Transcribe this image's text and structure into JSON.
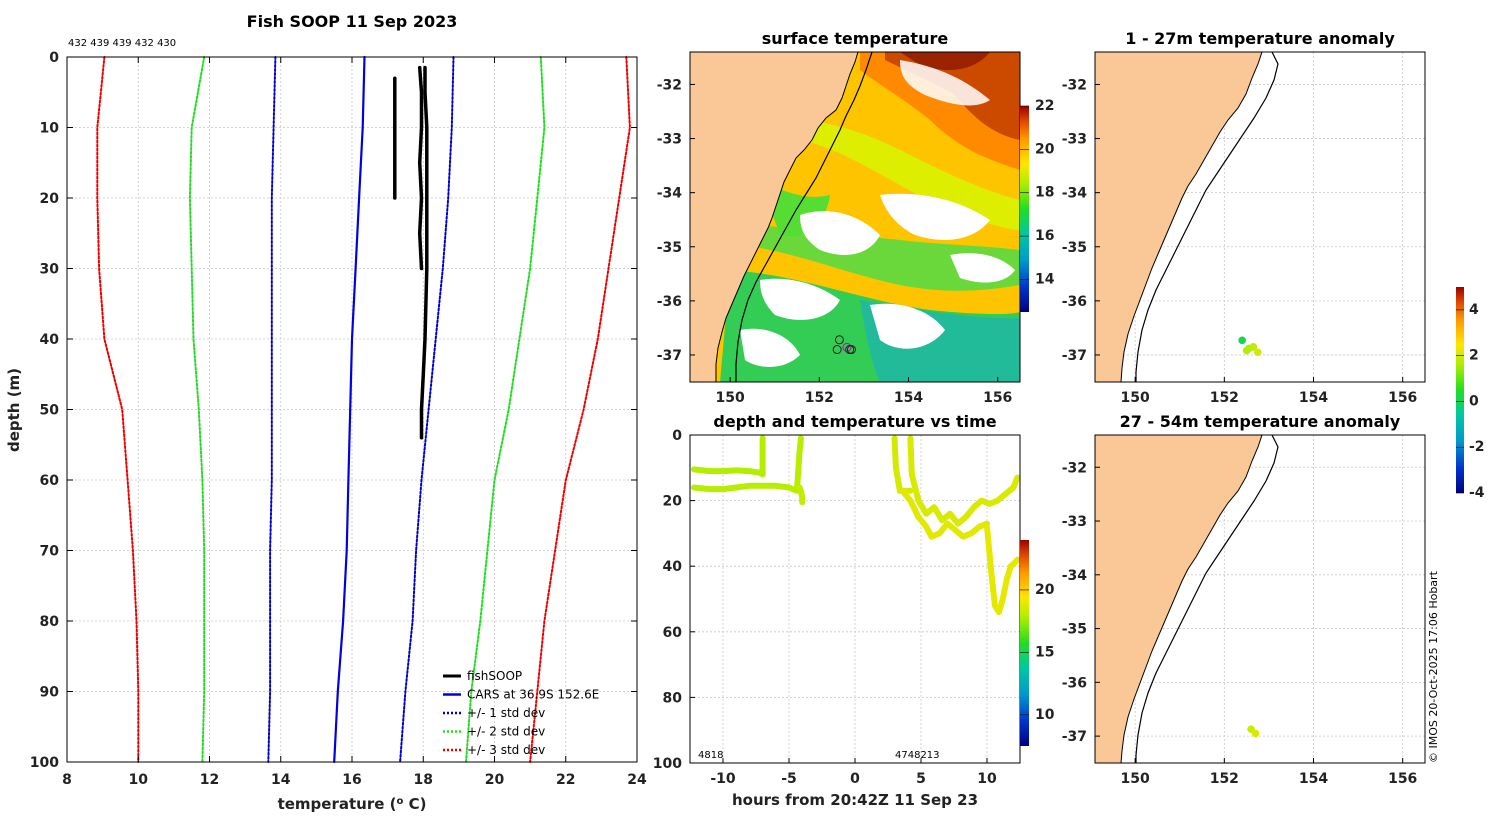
{
  "title": "Fish SOOP 11 Sep 2023",
  "top_counts": "432 439 439 432 430",
  "footer": "© IMOS 20-Oct-2025 17:06 Hobart",
  "colors": {
    "land": "#f9c896",
    "cars": "#0000e0",
    "std1": "#0000cc",
    "std2": "#22dd22",
    "std3": "#ee0000",
    "soop": "#000000"
  },
  "legend": [
    {
      "label": "fishSOOP",
      "style": "soop"
    },
    {
      "label": "CARS at 36.9S 152.6E",
      "style": "cars"
    },
    {
      "label": "+/- 1 std dev",
      "style": "std1"
    },
    {
      "label": "+/- 2 std dev",
      "style": "std2"
    },
    {
      "label": "+/- 3 std dev",
      "style": "std3"
    }
  ],
  "chart_data": [
    {
      "id": "profile",
      "type": "line",
      "xlabel": "temperature (° C)",
      "ylabel": "depth (m)",
      "xlim": [
        8,
        24
      ],
      "ylim": [
        0,
        100
      ],
      "xticks": [
        "8",
        "10",
        "12",
        "14",
        "16",
        "18",
        "20",
        "22",
        "24"
      ],
      "yticks": [
        "0",
        "10",
        "20",
        "30",
        "40",
        "50",
        "60",
        "70",
        "80",
        "90",
        "100"
      ],
      "series": [
        {
          "name": "CARS at 36.9S 152.6E",
          "style": "cars",
          "depth": [
            0,
            10,
            20,
            30,
            40,
            50,
            60,
            70,
            80,
            90,
            100
          ],
          "temp": [
            16.35,
            16.3,
            16.2,
            16.1,
            16.0,
            15.95,
            15.9,
            15.85,
            15.75,
            15.6,
            15.5
          ]
        },
        {
          "name": "+1 std dev",
          "style": "std1",
          "depth": [
            0,
            10,
            20,
            30,
            40,
            50,
            60,
            70,
            80,
            90,
            100
          ],
          "temp": [
            18.85,
            18.8,
            18.7,
            18.55,
            18.35,
            18.15,
            17.95,
            17.8,
            17.7,
            17.5,
            17.35
          ]
        },
        {
          "name": "-1 std dev",
          "style": "std1",
          "depth": [
            0,
            10,
            20,
            30,
            40,
            50,
            60,
            70,
            80,
            90,
            100
          ],
          "temp": [
            13.85,
            13.8,
            13.75,
            13.75,
            13.75,
            13.75,
            13.75,
            13.7,
            13.7,
            13.7,
            13.65
          ]
        },
        {
          "name": "+2 std dev",
          "style": "std2",
          "depth": [
            0,
            10,
            20,
            30,
            40,
            50,
            60,
            70,
            80,
            90,
            100
          ],
          "temp": [
            21.3,
            21.4,
            21.2,
            21.0,
            20.7,
            20.4,
            20.0,
            19.8,
            19.6,
            19.35,
            19.2
          ]
        },
        {
          "name": "-2 std dev",
          "style": "std2",
          "depth": [
            0,
            10,
            20,
            30,
            40,
            50,
            60,
            70,
            80,
            90,
            100
          ],
          "temp": [
            11.85,
            11.5,
            11.45,
            11.5,
            11.55,
            11.7,
            11.8,
            11.85,
            11.85,
            11.85,
            11.8
          ]
        },
        {
          "name": "+3 std dev",
          "style": "std3",
          "depth": [
            0,
            10,
            20,
            30,
            40,
            50,
            60,
            70,
            80,
            90,
            100
          ],
          "temp": [
            23.7,
            23.8,
            23.5,
            23.2,
            22.9,
            22.5,
            22.0,
            21.7,
            21.4,
            21.2,
            21.0
          ]
        },
        {
          "name": "-3 std dev",
          "style": "std3",
          "depth": [
            0,
            10,
            20,
            30,
            40,
            50,
            60,
            70,
            80,
            90,
            100
          ],
          "temp": [
            9.05,
            8.85,
            8.85,
            8.9,
            9.05,
            9.55,
            9.7,
            9.85,
            9.95,
            10.0,
            10.0
          ]
        },
        {
          "name": "fishSOOP a",
          "style": "soop",
          "depth": [
            1.5,
            5,
            10,
            15,
            20,
            25,
            30
          ],
          "temp": [
            17.9,
            17.95,
            17.95,
            17.9,
            17.95,
            17.9,
            17.95
          ]
        },
        {
          "name": "fishSOOP b",
          "style": "soop",
          "depth": [
            1.5,
            5,
            10,
            20,
            30,
            40,
            45,
            50,
            54
          ],
          "temp": [
            18.05,
            18.05,
            18.1,
            18.1,
            18.1,
            18.05,
            18.0,
            17.95,
            17.95
          ]
        },
        {
          "name": "fishSOOP c",
          "style": "soop",
          "depth": [
            3,
            10,
            20
          ],
          "temp": [
            17.2,
            17.2,
            17.2
          ]
        }
      ]
    },
    {
      "id": "sst",
      "type": "heatmap",
      "title": "surface temperature",
      "xlim": [
        149.1,
        156.5
      ],
      "ylim": [
        -37.5,
        -31.4
      ],
      "xticks": [
        "150",
        "152",
        "154",
        "156"
      ],
      "yticks": [
        "-32",
        "-33",
        "-34",
        "-35",
        "-36",
        "-37"
      ],
      "colorbar": {
        "ticks": [
          "14",
          "16",
          "18",
          "20",
          "22"
        ],
        "range": [
          12.5,
          22
        ]
      },
      "stations": [
        [
          152.45,
          -36.72
        ],
        [
          152.4,
          -36.9
        ],
        [
          152.62,
          -36.86
        ],
        [
          152.72,
          -36.9
        ],
        [
          152.68,
          -36.9
        ]
      ]
    },
    {
      "id": "anom_shallow",
      "type": "scatter",
      "title": "1 - 27m temperature anomaly",
      "xlim": [
        149.1,
        156.5
      ],
      "ylim": [
        -37.5,
        -31.4
      ],
      "xticks": [
        "150",
        "152",
        "154",
        "156"
      ],
      "yticks": [
        "-32",
        "-33",
        "-34",
        "-35",
        "-36",
        "-37"
      ],
      "points": [
        {
          "lon": 152.4,
          "lat": -36.73,
          "anom": 0.1
        },
        {
          "lon": 152.55,
          "lat": -36.88,
          "anom": 1.6
        },
        {
          "lon": 152.65,
          "lat": -36.85,
          "anom": 1.8
        },
        {
          "lon": 152.75,
          "lat": -36.95,
          "anom": 2.0
        },
        {
          "lon": 152.5,
          "lat": -36.92,
          "anom": 1.7
        }
      ]
    },
    {
      "id": "anom_deep",
      "type": "scatter",
      "title": "27 - 54m temperature anomaly",
      "xlim": [
        149.1,
        156.5
      ],
      "ylim": [
        -37.5,
        -31.4
      ],
      "xticks": [
        "150",
        "152",
        "154",
        "156"
      ],
      "yticks": [
        "-32",
        "-33",
        "-34",
        "-35",
        "-36",
        "-37"
      ],
      "points": [
        {
          "lon": 152.6,
          "lat": -36.87,
          "anom": 1.9
        },
        {
          "lon": 152.7,
          "lat": -36.95,
          "anom": 2.1
        }
      ]
    },
    {
      "id": "anom_colorbar",
      "type": "colorbar",
      "ticks": [
        "4",
        "2",
        "0",
        "-2",
        "-4"
      ],
      "range": [
        -4,
        5
      ]
    },
    {
      "id": "time",
      "type": "scatter",
      "title": "depth and temperature vs time",
      "xlabel": "hours from 20:42Z 11 Sep 23",
      "xlim": [
        -12.5,
        12.5
      ],
      "ylim": [
        0,
        100
      ],
      "xticks": [
        "-10",
        "-5",
        "0",
        "5",
        "10"
      ],
      "yticks": [
        "0",
        "20",
        "40",
        "60",
        "80",
        "100"
      ],
      "colorbar": {
        "ticks": [
          "10",
          "15",
          "20"
        ],
        "range": [
          7.5,
          24
        ]
      },
      "count_left": "4818",
      "count_right": "4748213",
      "tracks": [
        {
          "temp": 17.9,
          "t": [
            -12.2,
            -11,
            -10,
            -9,
            -8,
            -7.2,
            -7.0,
            -7.0
          ],
          "d": [
            10.5,
            11,
            11,
            10.8,
            11,
            11.5,
            12,
            1
          ]
        },
        {
          "temp": 18.0,
          "t": [
            -12.2,
            -11,
            -10,
            -9,
            -8,
            -7,
            -6,
            -5,
            -4.4,
            -4.2,
            -4.1
          ],
          "d": [
            16,
            16.5,
            16.5,
            16,
            15.5,
            15.5,
            15.5,
            16,
            17,
            5,
            1
          ]
        },
        {
          "temp": 18.2,
          "t": [
            -4.2,
            -4.1,
            -4.0,
            -4.0
          ],
          "d": [
            16,
            17,
            19,
            20.5
          ]
        },
        {
          "temp": 18.5,
          "t": [
            3.0,
            3.1,
            3.4,
            3.8,
            4.2
          ],
          "d": [
            1,
            10,
            17,
            17,
            17
          ]
        },
        {
          "temp": 18.6,
          "t": [
            4.2,
            4.3,
            4.8,
            5.4,
            6.0,
            6.6,
            7.2,
            7.8,
            8.4,
            9.0,
            9.6,
            10.2,
            10.8,
            11.4,
            12.0,
            12.3
          ],
          "d": [
            1,
            12,
            20,
            24,
            22,
            26,
            24,
            27,
            25,
            22,
            20,
            21,
            20,
            18,
            16,
            13
          ]
        },
        {
          "temp": 18.8,
          "t": [
            3.6,
            4.2,
            4.8,
            5.4,
            5.8,
            6.4,
            7.0,
            7.6,
            8.2,
            8.8,
            9.4,
            10.0
          ],
          "d": [
            17,
            20,
            25,
            28,
            31,
            30,
            27,
            29,
            31,
            30,
            28,
            27
          ]
        },
        {
          "temp": 18.9,
          "t": [
            10.0,
            10.3,
            10.6,
            10.9,
            11.2,
            11.5,
            11.8,
            12.1,
            12.3
          ],
          "d": [
            28,
            41,
            52,
            54,
            50,
            44,
            40,
            39,
            38
          ]
        }
      ]
    }
  ]
}
